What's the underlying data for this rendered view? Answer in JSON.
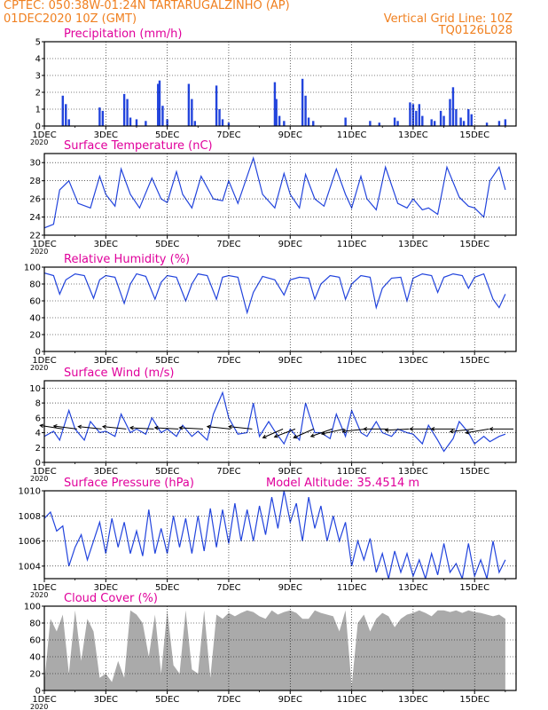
{
  "header": {
    "line1": "CPTEC:   050:38W-01:24N  TARTARUGALZINHO (AP)",
    "line2": "01DEC2020 10Z (GMT)",
    "grid_note": "Vertical Grid Line: 10Z",
    "run_id": "TQ0126L028"
  },
  "colors": {
    "header": "#f08020",
    "title": "#e0009b",
    "series": "#2244dd",
    "cloud": "#aaaaaa",
    "wind_arrow": "#000000",
    "grid": "#000000"
  },
  "x_axis": {
    "tick_labels": [
      "1DEC",
      "3DEC",
      "5DEC",
      "7DEC",
      "9DEC",
      "11DEC",
      "13DEC",
      "15DEC"
    ],
    "year_label": "2020"
  },
  "chart_data": [
    {
      "type": "bar",
      "title": "Precipitation (mm/h)",
      "ylim": [
        0,
        5
      ],
      "yticks": [
        0,
        1,
        2,
        3,
        4,
        5
      ],
      "x_days": [
        1.6,
        1.7,
        1.8,
        2.8,
        2.9,
        3.6,
        3.7,
        3.8,
        4.0,
        4.3,
        4.7,
        4.75,
        4.85,
        5.0,
        5.7,
        5.8,
        5.9,
        6.6,
        6.7,
        6.8,
        7.0,
        8.5,
        8.55,
        8.65,
        8.8,
        9.4,
        9.5,
        9.6,
        9.75,
        10.8,
        11.6,
        11.9,
        12.4,
        12.5,
        12.9,
        13.0,
        13.1,
        13.2,
        13.3,
        13.6,
        13.7,
        13.9,
        14.0,
        14.2,
        14.3,
        14.4,
        14.55,
        14.65,
        14.8,
        14.9,
        15.4,
        15.8,
        16.0
      ],
      "values": [
        1.8,
        1.3,
        0.4,
        1.1,
        0.9,
        1.9,
        1.6,
        0.5,
        0.4,
        0.3,
        2.5,
        2.7,
        1.2,
        0.4,
        2.5,
        1.6,
        0.3,
        2.4,
        1.0,
        0.4,
        0.2,
        2.6,
        1.6,
        0.6,
        0.3,
        2.8,
        1.8,
        0.5,
        0.3,
        0.5,
        0.3,
        0.2,
        0.5,
        0.3,
        1.4,
        1.3,
        0.9,
        1.3,
        0.6,
        0.4,
        0.3,
        0.9,
        0.6,
        1.6,
        2.3,
        1.0,
        0.5,
        0.3,
        1.0,
        0.7,
        0.2,
        0.3,
        0.4
      ]
    },
    {
      "type": "line",
      "title": "Surface Temperature (nC)",
      "ylim": [
        22,
        31
      ],
      "yticks": [
        22,
        24,
        26,
        28,
        30
      ],
      "x_days": [
        1.0,
        1.3,
        1.5,
        1.8,
        2.1,
        2.5,
        2.8,
        3.0,
        3.3,
        3.5,
        3.8,
        4.1,
        4.5,
        4.8,
        5.0,
        5.3,
        5.5,
        5.8,
        6.1,
        6.5,
        6.8,
        7.0,
        7.3,
        7.8,
        8.1,
        8.5,
        8.8,
        9.0,
        9.3,
        9.5,
        9.8,
        10.1,
        10.5,
        10.8,
        11.0,
        11.3,
        11.5,
        11.8,
        12.1,
        12.5,
        12.8,
        13.0,
        13.3,
        13.5,
        13.8,
        14.1,
        14.5,
        14.8,
        15.0,
        15.3,
        15.5,
        15.8,
        16.0
      ],
      "values": [
        22.8,
        23.2,
        27.0,
        28.0,
        25.5,
        25.0,
        28.5,
        26.5,
        25.2,
        29.3,
        26.5,
        25.0,
        28.3,
        26.0,
        25.6,
        29.0,
        26.5,
        25.0,
        28.5,
        26.0,
        25.8,
        28.0,
        25.5,
        30.5,
        26.5,
        25.0,
        28.8,
        26.5,
        25.0,
        28.7,
        26.0,
        25.2,
        29.3,
        26.5,
        25.0,
        28.5,
        26.0,
        24.8,
        29.5,
        25.5,
        25.0,
        26.0,
        24.8,
        25.0,
        24.3,
        29.5,
        26.2,
        25.2,
        25.0,
        24.0,
        28.0,
        29.5,
        27.0
      ]
    },
    {
      "type": "line",
      "title": "Relative Humidity (%)",
      "ylim": [
        0,
        100
      ],
      "yticks": [
        0,
        20,
        40,
        60,
        80,
        100
      ],
      "x_days": [
        1.0,
        1.3,
        1.5,
        1.7,
        2.0,
        2.3,
        2.6,
        2.8,
        3.0,
        3.3,
        3.6,
        3.8,
        4.0,
        4.3,
        4.6,
        4.8,
        5.0,
        5.3,
        5.6,
        5.8,
        6.0,
        6.3,
        6.6,
        6.8,
        7.0,
        7.3,
        7.6,
        7.8,
        8.1,
        8.5,
        8.8,
        9.0,
        9.3,
        9.6,
        9.8,
        10.0,
        10.3,
        10.6,
        10.8,
        11.0,
        11.3,
        11.6,
        11.8,
        12.0,
        12.3,
        12.6,
        12.8,
        13.0,
        13.3,
        13.6,
        13.8,
        14.0,
        14.3,
        14.6,
        14.8,
        15.0,
        15.3,
        15.6,
        15.8,
        16.0
      ],
      "values": [
        93,
        90,
        68,
        85,
        92,
        90,
        63,
        85,
        90,
        88,
        57,
        80,
        92,
        89,
        62,
        82,
        90,
        88,
        60,
        80,
        92,
        90,
        62,
        88,
        90,
        88,
        46,
        70,
        89,
        85,
        67,
        85,
        88,
        87,
        62,
        80,
        90,
        88,
        62,
        80,
        90,
        88,
        52,
        75,
        87,
        88,
        60,
        87,
        92,
        90,
        70,
        88,
        92,
        90,
        75,
        88,
        92,
        62,
        52,
        68
      ]
    },
    {
      "type": "line",
      "title": "Surface Wind (m/s)",
      "ylim": [
        0,
        11
      ],
      "yticks": [
        0,
        2,
        4,
        6,
        8,
        10
      ],
      "x_days": [
        1.0,
        1.3,
        1.5,
        1.8,
        2.0,
        2.3,
        2.5,
        2.8,
        3.0,
        3.3,
        3.5,
        3.8,
        4.0,
        4.3,
        4.5,
        4.8,
        5.0,
        5.3,
        5.5,
        5.8,
        6.0,
        6.3,
        6.5,
        6.8,
        7.0,
        7.3,
        7.6,
        7.8,
        8.0,
        8.3,
        8.5,
        8.8,
        9.0,
        9.3,
        9.5,
        9.8,
        10.0,
        10.3,
        10.5,
        10.8,
        11.0,
        11.3,
        11.5,
        11.8,
        12.0,
        12.3,
        12.5,
        12.8,
        13.0,
        13.3,
        13.5,
        13.8,
        14.0,
        14.3,
        14.5,
        14.8,
        15.0,
        15.3,
        15.5,
        15.8,
        16.0
      ],
      "values": [
        3.5,
        4.2,
        3.0,
        7.0,
        4.5,
        3.0,
        5.5,
        4.0,
        4.2,
        3.5,
        6.5,
        4.0,
        4.5,
        3.8,
        6.0,
        4.0,
        4.5,
        3.5,
        5.0,
        3.5,
        4.2,
        3.0,
        6.5,
        9.4,
        6.0,
        3.8,
        4.0,
        8.0,
        3.5,
        5.5,
        4.2,
        2.5,
        4.5,
        3.0,
        8.0,
        4.0,
        4.0,
        3.2,
        6.5,
        3.5,
        7.0,
        4.0,
        3.5,
        5.5,
        4.0,
        3.5,
        4.5,
        4.0,
        3.8,
        2.5,
        5.0,
        3.0,
        1.5,
        3.2,
        5.5,
        4.0,
        2.5,
        3.5,
        2.8,
        3.5,
        3.8
      ]
    },
    {
      "type": "line",
      "title": "Surface Pressure (hPa)",
      "annotation": "Model Altitude: 35.4514 m",
      "ylim": [
        1003.0,
        1010.0
      ],
      "yticks": [
        1004,
        1006,
        1008,
        1010
      ],
      "x_days": [
        1.0,
        1.2,
        1.4,
        1.6,
        1.8,
        2.0,
        2.2,
        2.4,
        2.6,
        2.8,
        3.0,
        3.2,
        3.4,
        3.6,
        3.8,
        4.0,
        4.2,
        4.4,
        4.6,
        4.8,
        5.0,
        5.2,
        5.4,
        5.6,
        5.8,
        6.0,
        6.2,
        6.4,
        6.6,
        6.8,
        7.0,
        7.2,
        7.4,
        7.6,
        7.8,
        8.0,
        8.2,
        8.4,
        8.6,
        8.8,
        9.0,
        9.2,
        9.4,
        9.6,
        9.8,
        10.0,
        10.2,
        10.4,
        10.6,
        10.8,
        11.0,
        11.2,
        11.4,
        11.6,
        11.8,
        12.0,
        12.2,
        12.4,
        12.6,
        12.8,
        13.0,
        13.2,
        13.4,
        13.6,
        13.8,
        14.0,
        14.2,
        14.4,
        14.6,
        14.8,
        15.0,
        15.2,
        15.4,
        15.6,
        15.8,
        16.0
      ],
      "values": [
        1007.8,
        1008.3,
        1006.8,
        1007.2,
        1004.0,
        1005.5,
        1006.5,
        1004.5,
        1006.0,
        1007.5,
        1005.0,
        1007.8,
        1005.5,
        1007.5,
        1005.0,
        1006.8,
        1004.8,
        1008.5,
        1005.0,
        1007.0,
        1005.0,
        1008.0,
        1005.5,
        1007.8,
        1005.0,
        1008.0,
        1005.2,
        1008.6,
        1005.5,
        1008.5,
        1005.8,
        1009.0,
        1006.0,
        1008.5,
        1006.0,
        1008.8,
        1006.5,
        1009.5,
        1007.0,
        1010.0,
        1007.5,
        1009.0,
        1006.0,
        1009.5,
        1007.0,
        1008.8,
        1006.0,
        1008.0,
        1006.0,
        1007.5,
        1004.0,
        1006.0,
        1004.5,
        1006.2,
        1003.5,
        1005.0,
        1003.0,
        1005.2,
        1003.5,
        1005.0,
        1003.2,
        1004.5,
        1003.0,
        1005.0,
        1003.3,
        1005.8,
        1003.5,
        1004.2,
        1003.0,
        1005.8,
        1003.2,
        1004.5,
        1003.0,
        1006.0,
        1003.5,
        1004.5
      ]
    },
    {
      "type": "area",
      "title": "Cloud Cover (%)",
      "ylim": [
        0,
        100
      ],
      "yticks": [
        0,
        20,
        40,
        60,
        80,
        100
      ],
      "x_days": [
        1.0,
        1.2,
        1.4,
        1.6,
        1.8,
        2.0,
        2.2,
        2.4,
        2.6,
        2.8,
        3.0,
        3.2,
        3.4,
        3.6,
        3.8,
        4.0,
        4.2,
        4.4,
        4.6,
        4.8,
        5.0,
        5.2,
        5.4,
        5.6,
        5.8,
        6.0,
        6.2,
        6.4,
        6.6,
        6.8,
        7.0,
        7.2,
        7.4,
        7.6,
        7.8,
        8.0,
        8.2,
        8.4,
        8.6,
        8.8,
        9.0,
        9.2,
        9.4,
        9.6,
        9.8,
        10.0,
        10.2,
        10.4,
        10.6,
        10.8,
        11.0,
        11.2,
        11.4,
        11.6,
        11.8,
        12.0,
        12.2,
        12.4,
        12.6,
        12.8,
        13.0,
        13.2,
        13.4,
        13.6,
        13.8,
        14.0,
        14.2,
        14.4,
        14.6,
        14.8,
        15.0,
        15.2,
        15.4,
        15.6,
        15.8,
        16.0
      ],
      "values": [
        10,
        85,
        70,
        90,
        20,
        95,
        35,
        85,
        70,
        15,
        20,
        10,
        35,
        15,
        95,
        90,
        80,
        40,
        90,
        20,
        95,
        30,
        20,
        95,
        25,
        20,
        95,
        15,
        90,
        85,
        92,
        88,
        92,
        95,
        93,
        88,
        85,
        95,
        90,
        93,
        95,
        92,
        85,
        85,
        95,
        92,
        90,
        88,
        70,
        95,
        5,
        80,
        90,
        70,
        85,
        92,
        88,
        75,
        85,
        90,
        92,
        95,
        92,
        88,
        95,
        95,
        93,
        95,
        92,
        95,
        93,
        92,
        90,
        88,
        90,
        85
      ]
    }
  ],
  "wind_vectors": {
    "x_days": [
      1.25,
      1.7,
      2.5,
      3.3,
      4.2,
      5.0,
      5.8,
      6.7,
      7.4,
      8.4,
      8.8,
      9.4,
      10.0,
      10.4,
      11.1,
      11.8,
      12.5,
      13.3,
      14.0,
      14.6,
      15.1,
      15.9
    ],
    "u": [
      -1.0,
      -0.8,
      -1.0,
      -1.0,
      -1.0,
      -1.0,
      -1.0,
      -1.0,
      -1.0,
      -0.8,
      -0.6,
      -0.7,
      -0.8,
      -0.9,
      -1.0,
      -1.0,
      -1.0,
      -1.0,
      -1.0,
      -0.9,
      -0.9,
      -1.0
    ],
    "v": [
      0.3,
      0.2,
      0.2,
      0.2,
      0.1,
      0.1,
      0.1,
      0.2,
      0.2,
      -0.8,
      -0.5,
      -0.7,
      -0.6,
      -0.4,
      -0.2,
      0.0,
      -0.1,
      0.0,
      0.0,
      -0.2,
      -0.3,
      0.0
    ]
  }
}
